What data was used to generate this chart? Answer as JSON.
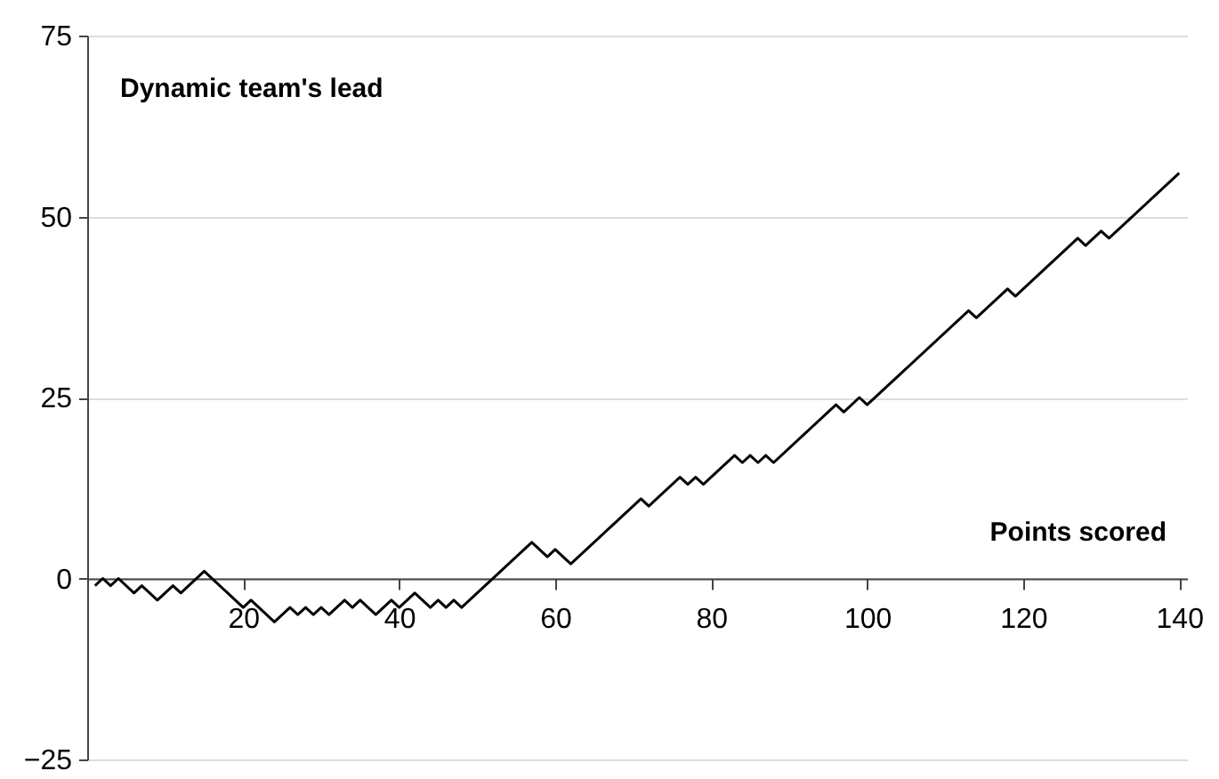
{
  "chart_data": {
    "type": "line",
    "xlabel": "Points scored",
    "ylabel": "Dynamic team's lead",
    "xlim": [
      0,
      141
    ],
    "xticks": [
      20,
      40,
      60,
      80,
      100,
      120,
      140
    ],
    "ylim": [
      -25,
      75
    ],
    "yticks": [
      -25,
      0,
      25,
      50,
      75
    ],
    "grid": "y",
    "series": [
      {
        "color": "#000000",
        "x": [
          1,
          2,
          3,
          4,
          6,
          7,
          9,
          11,
          12,
          15,
          20,
          21,
          24,
          26,
          27,
          28,
          29,
          30,
          31,
          33,
          34,
          35,
          37,
          39,
          40,
          42,
          44,
          45,
          46,
          47,
          48,
          57,
          59,
          60,
          62,
          71,
          72,
          76,
          77,
          78,
          79,
          83,
          84,
          85,
          86,
          87,
          88,
          96,
          97,
          99,
          100,
          113,
          114,
          118,
          119,
          127,
          128,
          130,
          131,
          140
        ],
        "values": [
          -1,
          0,
          -1,
          0,
          -2,
          -1,
          -3,
          -1,
          -2,
          1,
          -4,
          -3,
          -6,
          -4,
          -5,
          -4,
          -5,
          -4,
          -5,
          -3,
          -4,
          -3,
          -5,
          -3,
          -4,
          -2,
          -4,
          -3,
          -4,
          -3,
          -4,
          5,
          3,
          4,
          2,
          11,
          10,
          14,
          13,
          14,
          13,
          17,
          16,
          17,
          16,
          17,
          16,
          24,
          23,
          25,
          24,
          37,
          36,
          40,
          39,
          47,
          46,
          48,
          47,
          56
        ]
      }
    ]
  }
}
